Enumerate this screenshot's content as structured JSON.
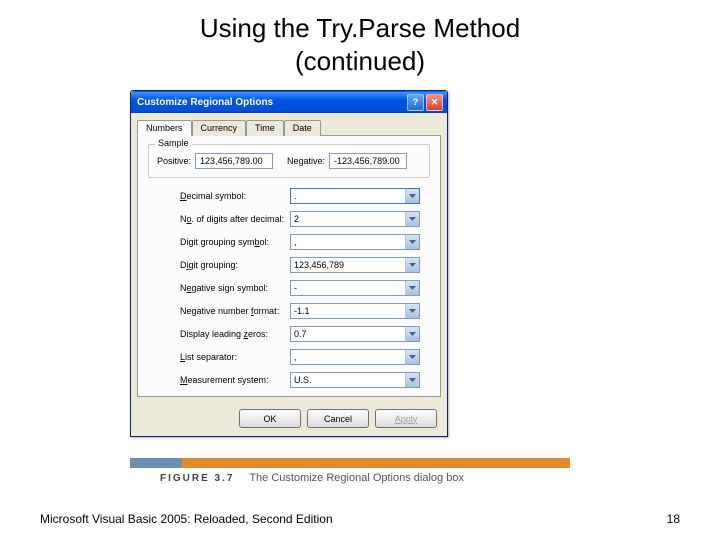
{
  "slide": {
    "title_line1": "Using the Try.Parse Method",
    "title_line2": "(continued)"
  },
  "dialog": {
    "title": "Customize Regional Options",
    "tabs": [
      "Numbers",
      "Currency",
      "Time",
      "Date"
    ],
    "active_tab_index": 0,
    "sample": {
      "legend": "Sample",
      "positive_label": "Positive:",
      "positive_value": "123,456,789.00",
      "negative_label": "Negative:",
      "negative_value": "-123,456,789.00"
    },
    "fields": [
      {
        "label_pre": "",
        "u": "D",
        "label_post": "ecimal symbol:",
        "value": "."
      },
      {
        "label_pre": "N",
        "u": "o",
        "label_post": ". of digits after decimal:",
        "value": "2"
      },
      {
        "label_pre": "Digit grouping sym",
        "u": "b",
        "label_post": "ol:",
        "value": ","
      },
      {
        "label_pre": "D",
        "u": "i",
        "label_post": "git grouping:",
        "value": "123,456,789"
      },
      {
        "label_pre": "N",
        "u": "e",
        "label_post": "gative sign symbol:",
        "value": "-"
      },
      {
        "label_pre": "Negative number ",
        "u": "f",
        "label_post": "ormat:",
        "value": "-1.1"
      },
      {
        "label_pre": "Display leading ",
        "u": "z",
        "label_post": "eros:",
        "value": "0.7"
      },
      {
        "label_pre": "",
        "u": "L",
        "label_post": "ist separator:",
        "value": ","
      },
      {
        "label_pre": "",
        "u": "M",
        "label_post": "easurement system:",
        "value": "U.S."
      }
    ],
    "buttons": {
      "ok": "OK",
      "cancel": "Cancel",
      "apply": "Apply"
    }
  },
  "figure": {
    "number": "FIGURE 3.7",
    "caption": "The Customize Regional Options dialog box",
    "bar_colors": {
      "seg1": "#6b8fb3",
      "seg2": "#e68a2e"
    }
  },
  "footer": {
    "text": "Microsoft Visual Basic 2005: Reloaded, Second Edition",
    "page": "18"
  }
}
